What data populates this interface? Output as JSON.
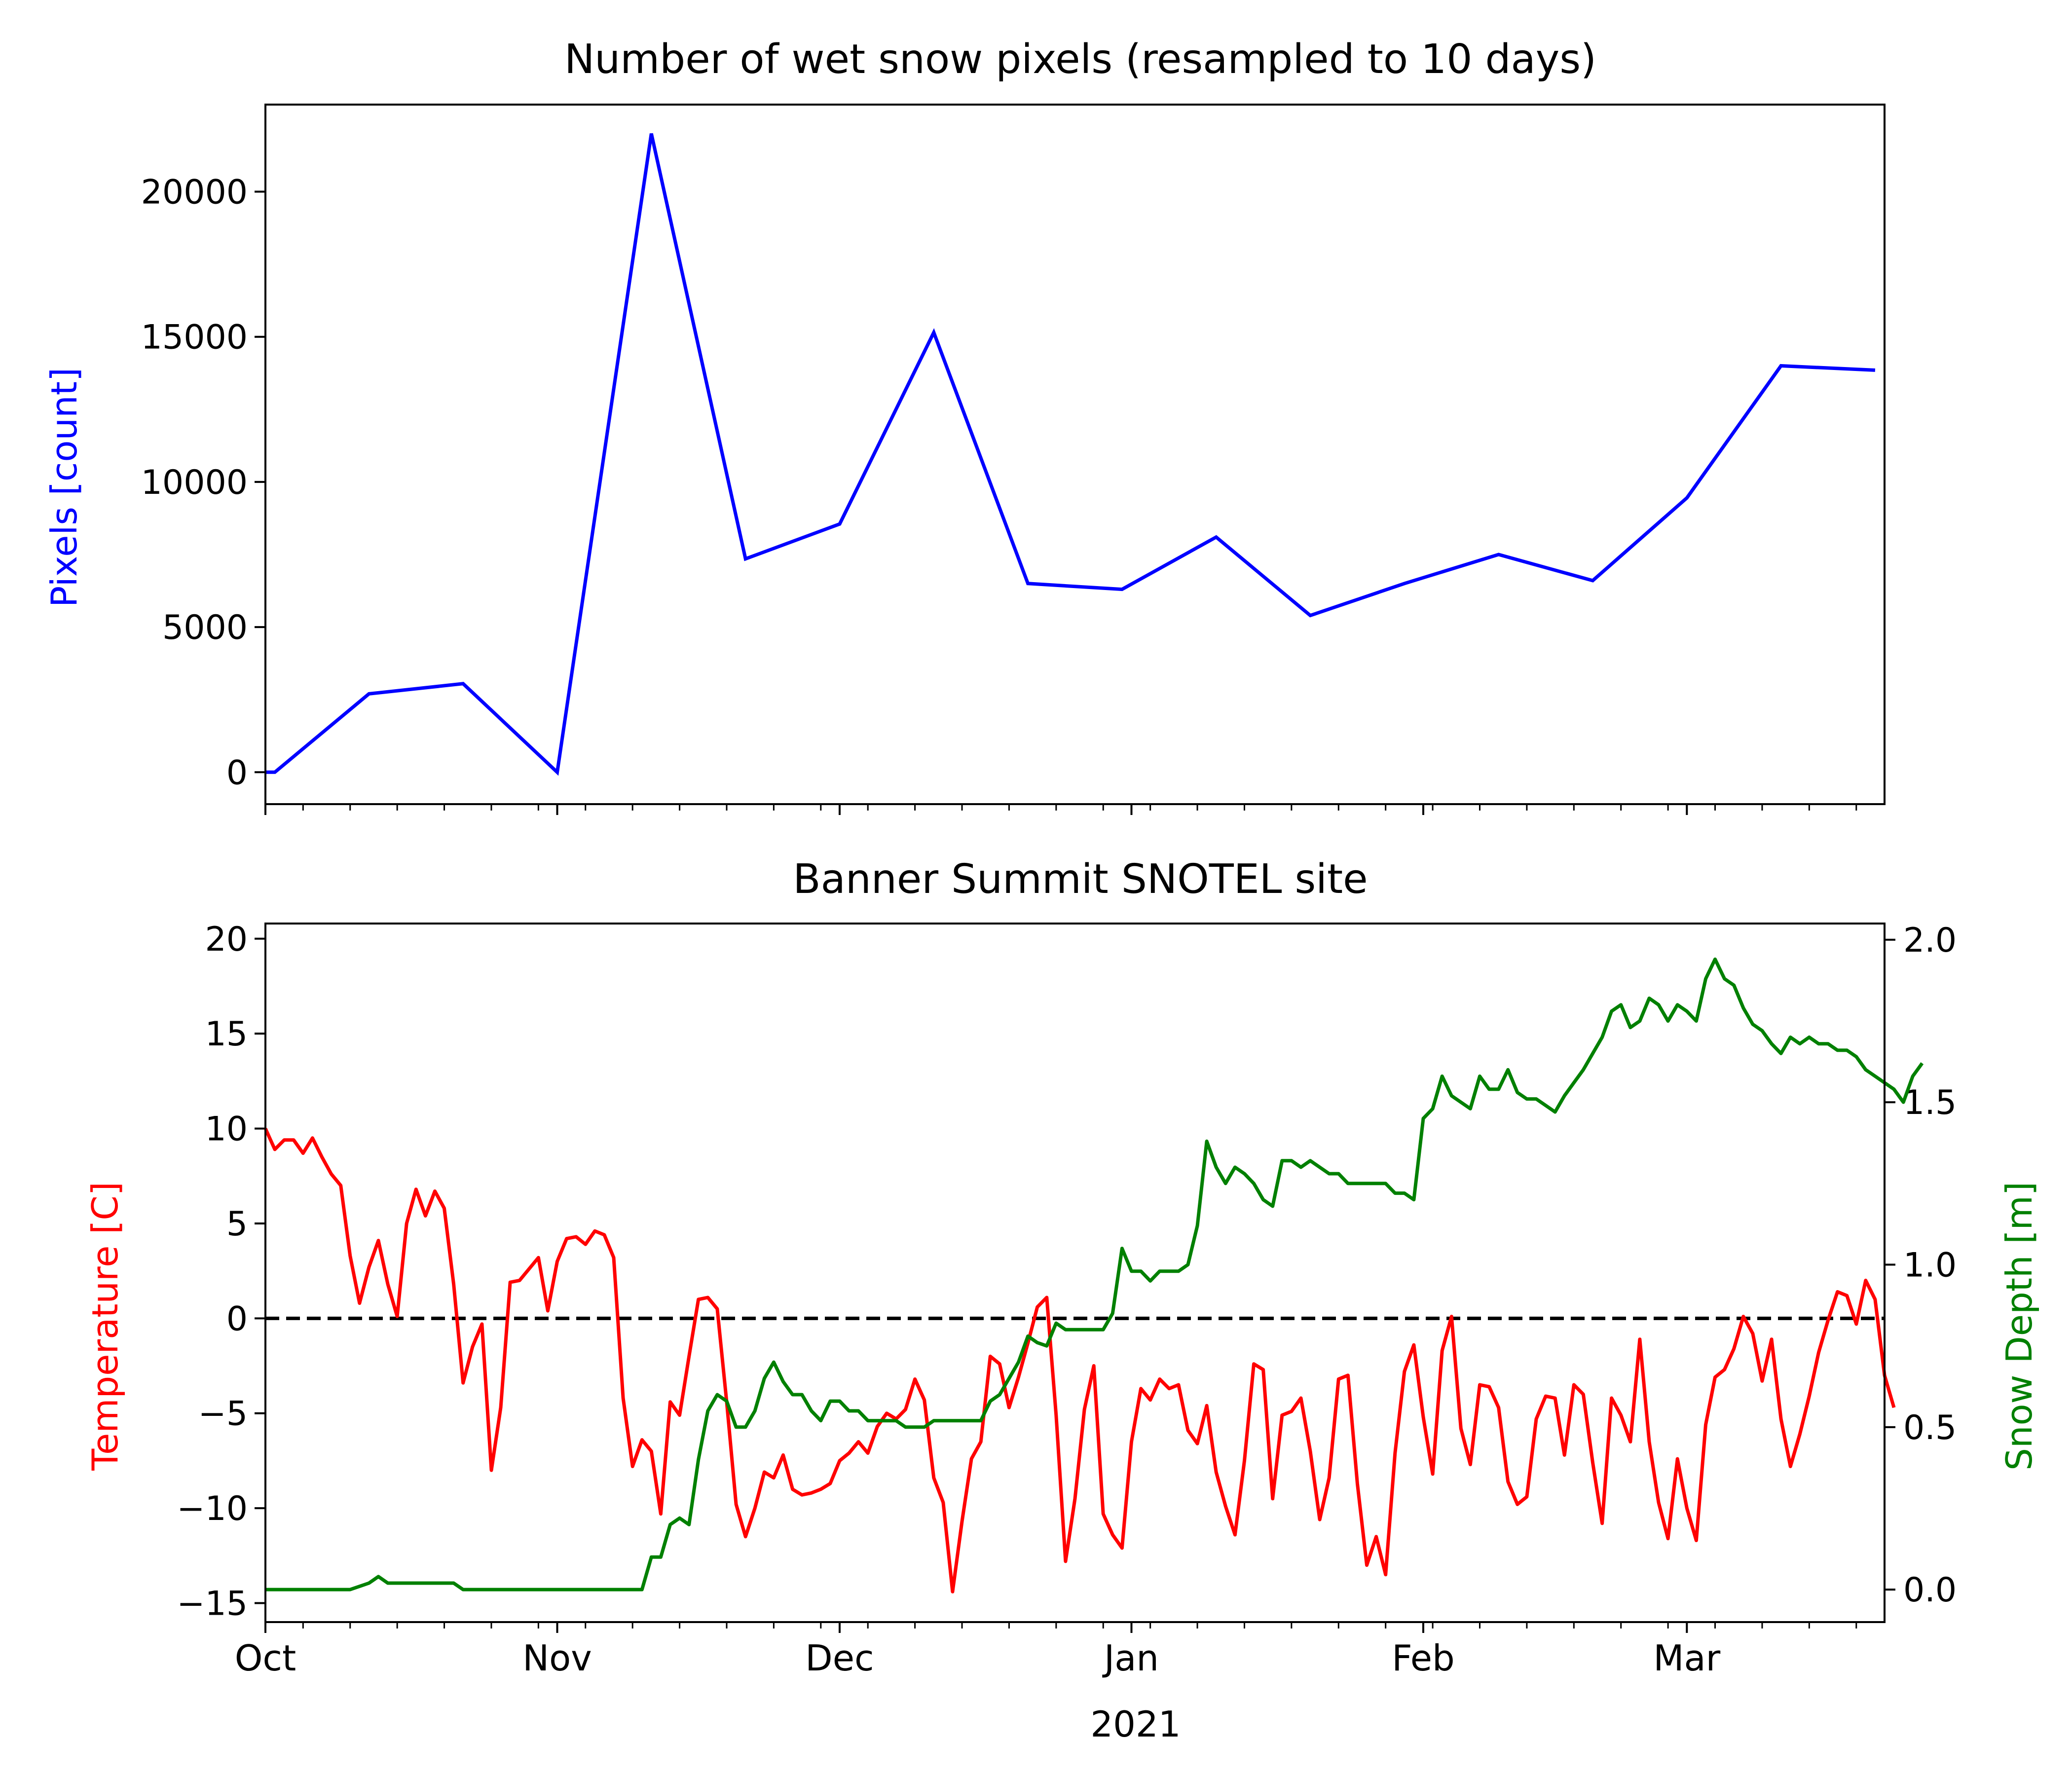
{
  "chart_data": [
    {
      "type": "line",
      "title": "Number of wet snow pixels (resampled to 10 days)",
      "xlabel": "",
      "ylabel": "Pixels [count]",
      "ylabel_color": "#0000ff",
      "ylim": [
        -1100,
        23000
      ],
      "yticks": [
        0,
        5000,
        10000,
        15000,
        20000
      ],
      "xlim": [
        "2020-10-01",
        "2021-03-22"
      ],
      "x_major_ticks": [
        "2020-10-01",
        "2020-11-01",
        "2020-12-01",
        "2021-01-01",
        "2021-02-01",
        "2021-03-01"
      ],
      "grid": false,
      "series": [
        {
          "color": "#0000ff",
          "x": [
            "2020-10-01",
            "2020-10-02",
            "2020-10-12",
            "2020-10-22",
            "2020-11-01",
            "2020-11-11",
            "2020-11-21",
            "2020-12-01",
            "2020-12-11",
            "2020-12-21",
            "2020-12-31",
            "2021-01-10",
            "2021-01-20",
            "2021-01-30",
            "2021-02-09",
            "2021-02-19",
            "2021-03-01",
            "2021-03-11",
            "2021-03-21"
          ],
          "values": [
            0,
            0,
            2700,
            3050,
            0,
            22000,
            7350,
            8550,
            15150,
            6500,
            6300,
            8100,
            5400,
            6500,
            7500,
            6600,
            9450,
            14000,
            13850
          ]
        }
      ]
    },
    {
      "type": "line",
      "title": "Banner Summit SNOTEL site",
      "x_tick_labels": [
        "Oct",
        "Nov",
        "Dec",
        "Jan",
        "Feb",
        "Mar"
      ],
      "x_year_label": "2021",
      "x_major_ticks": [
        "2020-10-01",
        "2020-11-01",
        "2020-12-01",
        "2021-01-01",
        "2021-02-01",
        "2021-03-01"
      ],
      "xlim": [
        "2020-10-01",
        "2021-03-22"
      ],
      "grid": false,
      "y_left": {
        "label": "Temperature [C]",
        "color": "#ff0000",
        "ylim": [
          -16,
          20.8
        ],
        "ticks": [
          -15,
          -10,
          -5,
          0,
          5,
          10,
          15,
          20
        ]
      },
      "y_right": {
        "label": "Snow Depth [m]",
        "color": "#008000",
        "ylim": [
          -0.1,
          2.05
        ],
        "ticks": [
          0.0,
          0.5,
          1.0,
          1.5,
          2.0
        ]
      },
      "reference_line": {
        "y": 0,
        "axis": "left",
        "style": "dashed",
        "color": "#000000"
      },
      "series": [
        {
          "axis": "left",
          "color": "#ff0000",
          "start": "2020-10-01",
          "values": [
            10,
            8.9,
            9.4,
            9.4,
            8.7,
            9.5,
            8.5,
            7.6,
            7,
            3.3,
            0.8,
            2.7,
            4.1,
            1.8,
            0.1,
            5,
            6.8,
            5.4,
            6.7,
            5.8,
            1.8,
            -3.4,
            -1.5,
            -0.3,
            -8,
            -4.7,
            1.9,
            2,
            2.6,
            3.2,
            0.4,
            3,
            4.2,
            4.3,
            3.9,
            4.6,
            4.4,
            3.2,
            -4.2,
            -7.8,
            -6.4,
            -7,
            -10.3,
            -4.4,
            -5.1,
            -2,
            1,
            1.1,
            0.5,
            -4.4,
            -9.8,
            -11.5,
            -10,
            -8.1,
            -8.4,
            -7.2,
            -9,
            -9.3,
            -9.2,
            -9,
            -8.7,
            -7.5,
            -7.1,
            -6.5,
            -7.1,
            -5.7,
            -5,
            -5.3,
            -4.8,
            -3.2,
            -4.3,
            -8.4,
            -9.7,
            -14.4,
            -10.7,
            -7.4,
            -6.5,
            -2,
            -2.4,
            -4.7,
            -3.1,
            -1.3,
            0.6,
            1.1,
            -5.1,
            -12.8,
            -9.5,
            -4.8,
            -2.5,
            -10.3,
            -11.4,
            -12.1,
            -6.5,
            -3.7,
            -4.3,
            -3.2,
            -3.7,
            -3.5,
            -5.9,
            -6.6,
            -4.6,
            -8.1,
            -9.9,
            -11.4,
            -7.5,
            -2.4,
            -2.7,
            -9.5,
            -5.1,
            -4.9,
            -4.2,
            -7,
            -10.6,
            -8.4,
            -3.2,
            -3,
            -8.7,
            -13,
            -11.5,
            -13.5,
            -7.1,
            -2.8,
            -1.4,
            -5.2,
            -8.2,
            -1.7,
            0.1,
            -5.8,
            -7.7,
            -3.5,
            -3.6,
            -4.7,
            -8.6,
            -9.8,
            -9.4,
            -5.3,
            -4.1,
            -4.2,
            -7.2,
            -3.5,
            -4,
            -7.6,
            -10.8,
            -4.2,
            -5.1,
            -6.5,
            -1.1,
            -6.5,
            -9.7,
            -11.6,
            -7.4,
            -10,
            -11.7,
            -5.6,
            -3.1,
            -2.7,
            -1.6,
            0.1,
            -0.8,
            -3.3,
            -1.1,
            -5.3,
            -7.8,
            -6.1,
            -4.1,
            -1.8,
            -0.1,
            1.4,
            1.2,
            -0.3,
            2,
            1,
            -3,
            -4.7
          ]
        },
        {
          "axis": "right",
          "color": "#008000",
          "start": "2020-10-01",
          "values": [
            0,
            0,
            0,
            0,
            0,
            0,
            0,
            0,
            0,
            0,
            0.01,
            0.02,
            0.04,
            0.02,
            0.02,
            0.02,
            0.02,
            0.02,
            0.02,
            0.02,
            0.02,
            0,
            0,
            0,
            0,
            0,
            0,
            0,
            0,
            0,
            0,
            0,
            0,
            0,
            0,
            0,
            0,
            0,
            0,
            0,
            0,
            0.1,
            0.1,
            0.2,
            0.22,
            0.2,
            0.4,
            0.55,
            0.6,
            0.58,
            0.5,
            0.5,
            0.55,
            0.65,
            0.7,
            0.64,
            0.6,
            0.6,
            0.55,
            0.52,
            0.58,
            0.58,
            0.55,
            0.55,
            0.52,
            0.52,
            0.52,
            0.52,
            0.5,
            0.5,
            0.5,
            0.52,
            0.52,
            0.52,
            0.52,
            0.52,
            0.52,
            0.58,
            0.6,
            0.65,
            0.7,
            0.78,
            0.76,
            0.75,
            0.82,
            0.8,
            0.8,
            0.8,
            0.8,
            0.8,
            0.85,
            1.05,
            0.98,
            0.98,
            0.95,
            0.98,
            0.98,
            0.98,
            1.0,
            1.12,
            1.38,
            1.3,
            1.25,
            1.3,
            1.28,
            1.25,
            1.2,
            1.18,
            1.32,
            1.32,
            1.3,
            1.32,
            1.3,
            1.28,
            1.28,
            1.25,
            1.25,
            1.25,
            1.25,
            1.25,
            1.22,
            1.22,
            1.2,
            1.45,
            1.48,
            1.58,
            1.52,
            1.5,
            1.48,
            1.58,
            1.54,
            1.54,
            1.6,
            1.53,
            1.51,
            1.51,
            1.49,
            1.47,
            1.52,
            1.56,
            1.6,
            1.65,
            1.7,
            1.78,
            1.8,
            1.73,
            1.75,
            1.82,
            1.8,
            1.75,
            1.8,
            1.78,
            1.75,
            1.88,
            1.94,
            1.88,
            1.86,
            1.79,
            1.74,
            1.72,
            1.68,
            1.65,
            1.7,
            1.68,
            1.7,
            1.68,
            1.68,
            1.66,
            1.66,
            1.64,
            1.6,
            1.58,
            1.56,
            1.54,
            1.5,
            1.58,
            1.62
          ]
        }
      ]
    }
  ]
}
